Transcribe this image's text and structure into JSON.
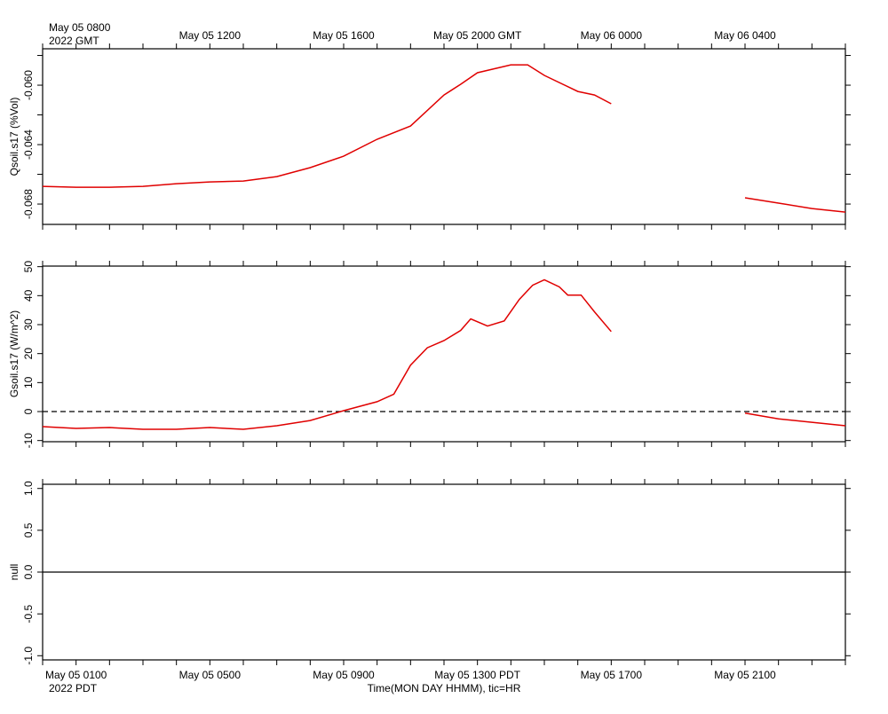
{
  "time_axis": {
    "xlim": [
      0,
      24
    ],
    "xticks": [
      0,
      1,
      2,
      3,
      4,
      5,
      6,
      7,
      8,
      9,
      10,
      11,
      12,
      13,
      14,
      15,
      16,
      17,
      18,
      19,
      20,
      21,
      22,
      23,
      24
    ],
    "top_labels": [
      {
        "value": 1,
        "label": "May 05 0800"
      },
      {
        "value": 5,
        "label": "May 05 1200"
      },
      {
        "value": 9,
        "label": "May 05 1600"
      },
      {
        "value": 13,
        "label": "May 05 2000 GMT"
      },
      {
        "value": 17,
        "label": "May 06 0000"
      },
      {
        "value": 21,
        "label": "May 06 0400"
      }
    ],
    "top_note": "2022 GMT",
    "bottom_labels": [
      {
        "value": 1,
        "label": "May 05 0100"
      },
      {
        "value": 5,
        "label": "May 05 0500"
      },
      {
        "value": 9,
        "label": "May 05 0900"
      },
      {
        "value": 13,
        "label": "May 05 1300 PDT"
      },
      {
        "value": 17,
        "label": "May 05 1700"
      },
      {
        "value": 21,
        "label": "May 05 2100"
      }
    ],
    "bottom_note": "2022 PDT",
    "xlabel": "Time(MON DAY HHMM), tic=HR"
  },
  "chart_data": [
    {
      "type": "line",
      "ylabel": "Qsoil.s17 (%Vol)",
      "color": "#e00000",
      "ylim": [
        -0.06937,
        -0.05755
      ],
      "yticks": [
        {
          "value": -0.06,
          "label": "-0.060"
        },
        {
          "value": -0.064,
          "label": "-0.064"
        },
        {
          "value": -0.068,
          "label": "-0.068"
        }
      ],
      "yminorticks": [
        -0.058,
        -0.062,
        -0.066
      ],
      "x": [
        0,
        1,
        2,
        3,
        4,
        5,
        6,
        7,
        8,
        9,
        10,
        11,
        12,
        12.5,
        13,
        14,
        14.5,
        15,
        16,
        16.5,
        17,
        19,
        21,
        22,
        23,
        24
      ],
      "values": [
        -0.06681,
        -0.06687,
        -0.06687,
        -0.06681,
        -0.06663,
        -0.06651,
        -0.06645,
        -0.06615,
        -0.06555,
        -0.06478,
        -0.06364,
        -0.06275,
        -0.06066,
        -0.05994,
        -0.05916,
        -0.05863,
        -0.05863,
        -0.05934,
        -0.06042,
        -0.06066,
        -0.06125,
        null,
        -0.06758,
        -0.06794,
        -0.0683,
        -0.06854
      ]
    },
    {
      "type": "line",
      "ylabel": "Gsoil.s17 (W/m^2)",
      "color": "#e00000",
      "ylim": [
        -10.4,
        50.2
      ],
      "yticks": [
        -10,
        0,
        10,
        20,
        30,
        40,
        50
      ],
      "hline": 0,
      "hline_style": "dashed",
      "x": [
        0,
        1,
        2,
        3,
        4,
        5,
        6,
        7,
        8,
        9,
        10,
        10.5,
        11,
        11.5,
        12,
        12.5,
        12.8,
        13.3,
        13.8,
        14.25,
        14.65,
        15,
        15.45,
        15.7,
        16.1,
        16.5,
        17,
        19,
        21,
        22,
        23,
        24
      ],
      "values": [
        -5.2,
        -5.8,
        -5.5,
        -6.1,
        -6.1,
        -5.5,
        -6.1,
        -4.9,
        -3.1,
        0.3,
        3.4,
        6,
        16,
        22,
        24.5,
        28,
        32,
        29.5,
        31.3,
        38.7,
        43.6,
        45.5,
        43,
        40.2,
        40.2,
        34.4,
        27.6,
        null,
        -0.5,
        -2.5,
        -3.7,
        -4.9
      ]
    },
    {
      "type": "line",
      "ylabel": "null",
      "ylim": [
        -1.05,
        1.05
      ],
      "yticks": [
        {
          "value": -1,
          "label": "-1.0"
        },
        {
          "value": -0.5,
          "label": "-0.5"
        },
        {
          "value": 0,
          "label": "0.0"
        },
        {
          "value": 0.5,
          "label": "0.5"
        },
        {
          "value": 1,
          "label": "1.0"
        }
      ],
      "hline": 0,
      "hline_style": "solid"
    }
  ]
}
